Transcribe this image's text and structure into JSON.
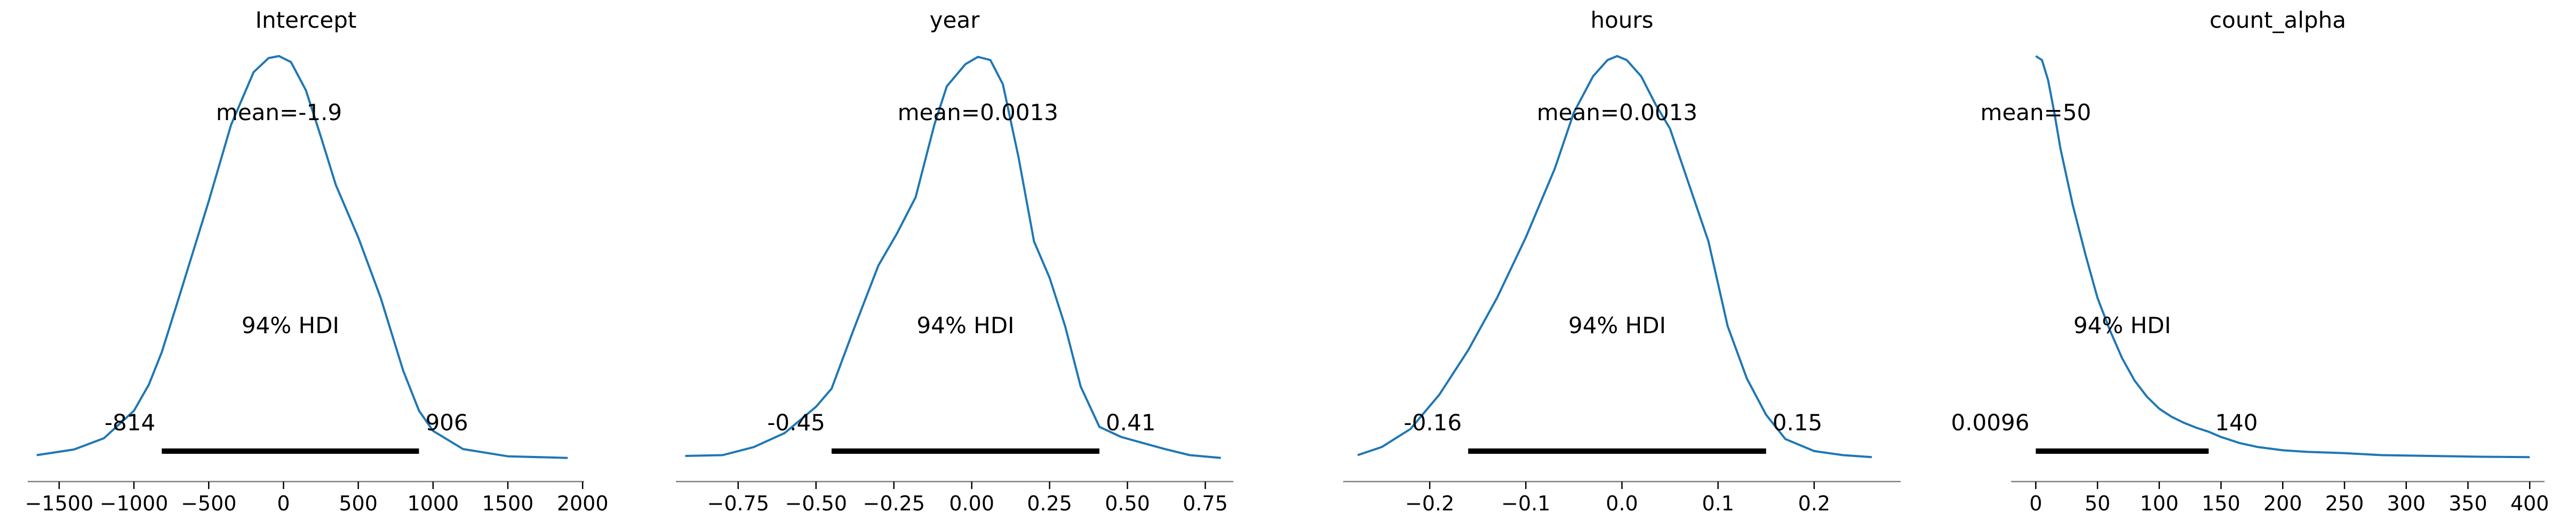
{
  "figure": {
    "kde_color": "#1f77b4",
    "hdi_color": "#000000",
    "axis_color": "#808080",
    "hdi_label": "94% HDI"
  },
  "chart_data": [
    {
      "type": "line",
      "title": "Intercept",
      "mean_label": "mean=-1.9",
      "hdi": [
        -814,
        906
      ],
      "hdi_labels": [
        "-814",
        "906"
      ],
      "xlim": [
        -1710,
        2010
      ],
      "xticks": [
        -1500,
        -1000,
        -500,
        0,
        500,
        1000,
        1500,
        2000
      ],
      "xtick_labels": [
        "−1500",
        "−1000",
        "−500",
        "0",
        "500",
        "1000",
        "1500",
        "2000"
      ],
      "x": [
        -1650,
        -1400,
        -1200,
        -1000,
        -900,
        -814,
        -700,
        -500,
        -350,
        -200,
        -100,
        -30,
        50,
        150,
        250,
        350,
        500,
        650,
        800,
        906,
        1000,
        1200,
        1500,
        1900
      ],
      "y": [
        0.01,
        0.024,
        0.052,
        0.12,
        0.185,
        0.265,
        0.4,
        0.64,
        0.83,
        0.96,
        0.995,
        1.0,
        0.985,
        0.915,
        0.8,
        0.68,
        0.55,
        0.4,
        0.22,
        0.12,
        0.07,
        0.025,
        0.007,
        0.003
      ]
    },
    {
      "type": "line",
      "title": "year",
      "mean_label": "mean=0.0013",
      "hdi": [
        -0.45,
        0.41
      ],
      "hdi_labels": [
        "-0.45",
        "0.41"
      ],
      "xlim": [
        -0.95,
        0.84
      ],
      "xticks": [
        -0.75,
        -0.5,
        -0.25,
        0.0,
        0.25,
        0.5,
        0.75
      ],
      "xtick_labels": [
        "−0.75",
        "−0.50",
        "−0.25",
        "0.00",
        "0.25",
        "0.50",
        "0.75"
      ],
      "x": [
        -0.92,
        -0.8,
        -0.7,
        -0.6,
        -0.5,
        -0.45,
        -0.38,
        -0.3,
        -0.24,
        -0.18,
        -0.12,
        -0.08,
        -0.02,
        0.02,
        0.06,
        0.1,
        0.15,
        0.2,
        0.25,
        0.3,
        0.35,
        0.41,
        0.48,
        0.55,
        0.62,
        0.7,
        0.8
      ],
      "y": [
        0.008,
        0.01,
        0.03,
        0.065,
        0.13,
        0.175,
        0.32,
        0.48,
        0.56,
        0.65,
        0.83,
        0.925,
        0.98,
        0.998,
        0.99,
        0.93,
        0.75,
        0.54,
        0.45,
        0.33,
        0.18,
        0.08,
        0.055,
        0.04,
        0.025,
        0.01,
        0.003
      ]
    },
    {
      "type": "line",
      "title": "hours",
      "mean_label": "mean=0.0013",
      "hdi": [
        -0.16,
        0.15
      ],
      "hdi_labels": [
        "-0.16",
        "0.15"
      ],
      "xlim": [
        -0.29,
        0.29
      ],
      "xticks": [
        -0.2,
        -0.1,
        0.0,
        0.1,
        0.2
      ],
      "xtick_labels": [
        "−0.2",
        "−0.1",
        "0.0",
        "0.1",
        "0.2"
      ],
      "x": [
        -0.275,
        -0.25,
        -0.22,
        -0.19,
        -0.16,
        -0.13,
        -0.1,
        -0.07,
        -0.05,
        -0.03,
        -0.015,
        -0.005,
        0.005,
        0.02,
        0.035,
        0.05,
        0.07,
        0.09,
        0.11,
        0.13,
        0.15,
        0.17,
        0.2,
        0.23,
        0.26
      ],
      "y": [
        0.01,
        0.03,
        0.075,
        0.16,
        0.27,
        0.4,
        0.55,
        0.72,
        0.86,
        0.95,
        0.99,
        1.0,
        0.99,
        0.95,
        0.88,
        0.82,
        0.68,
        0.54,
        0.33,
        0.2,
        0.11,
        0.05,
        0.02,
        0.01,
        0.005
      ]
    },
    {
      "type": "line",
      "title": "count_alpha",
      "mean_label": "mean=50",
      "hdi": [
        0.0096,
        140
      ],
      "hdi_labels": [
        "0.0096",
        "140"
      ],
      "xlim": [
        -20,
        412
      ],
      "xticks": [
        0,
        50,
        100,
        150,
        200,
        250,
        300,
        350,
        400
      ],
      "xtick_labels": [
        "0",
        "50",
        "100",
        "150",
        "200",
        "250",
        "300",
        "350",
        "400"
      ],
      "x": [
        0,
        5,
        10,
        15,
        20,
        30,
        40,
        50,
        60,
        70,
        80,
        90,
        100,
        110,
        120,
        130,
        140,
        150,
        165,
        180,
        200,
        220,
        250,
        280,
        320,
        360,
        400
      ],
      "y": [
        1.0,
        0.99,
        0.94,
        0.86,
        0.77,
        0.63,
        0.51,
        0.4,
        0.32,
        0.25,
        0.195,
        0.155,
        0.125,
        0.105,
        0.09,
        0.078,
        0.068,
        0.055,
        0.04,
        0.03,
        0.022,
        0.018,
        0.015,
        0.01,
        0.008,
        0.006,
        0.005
      ]
    }
  ]
}
